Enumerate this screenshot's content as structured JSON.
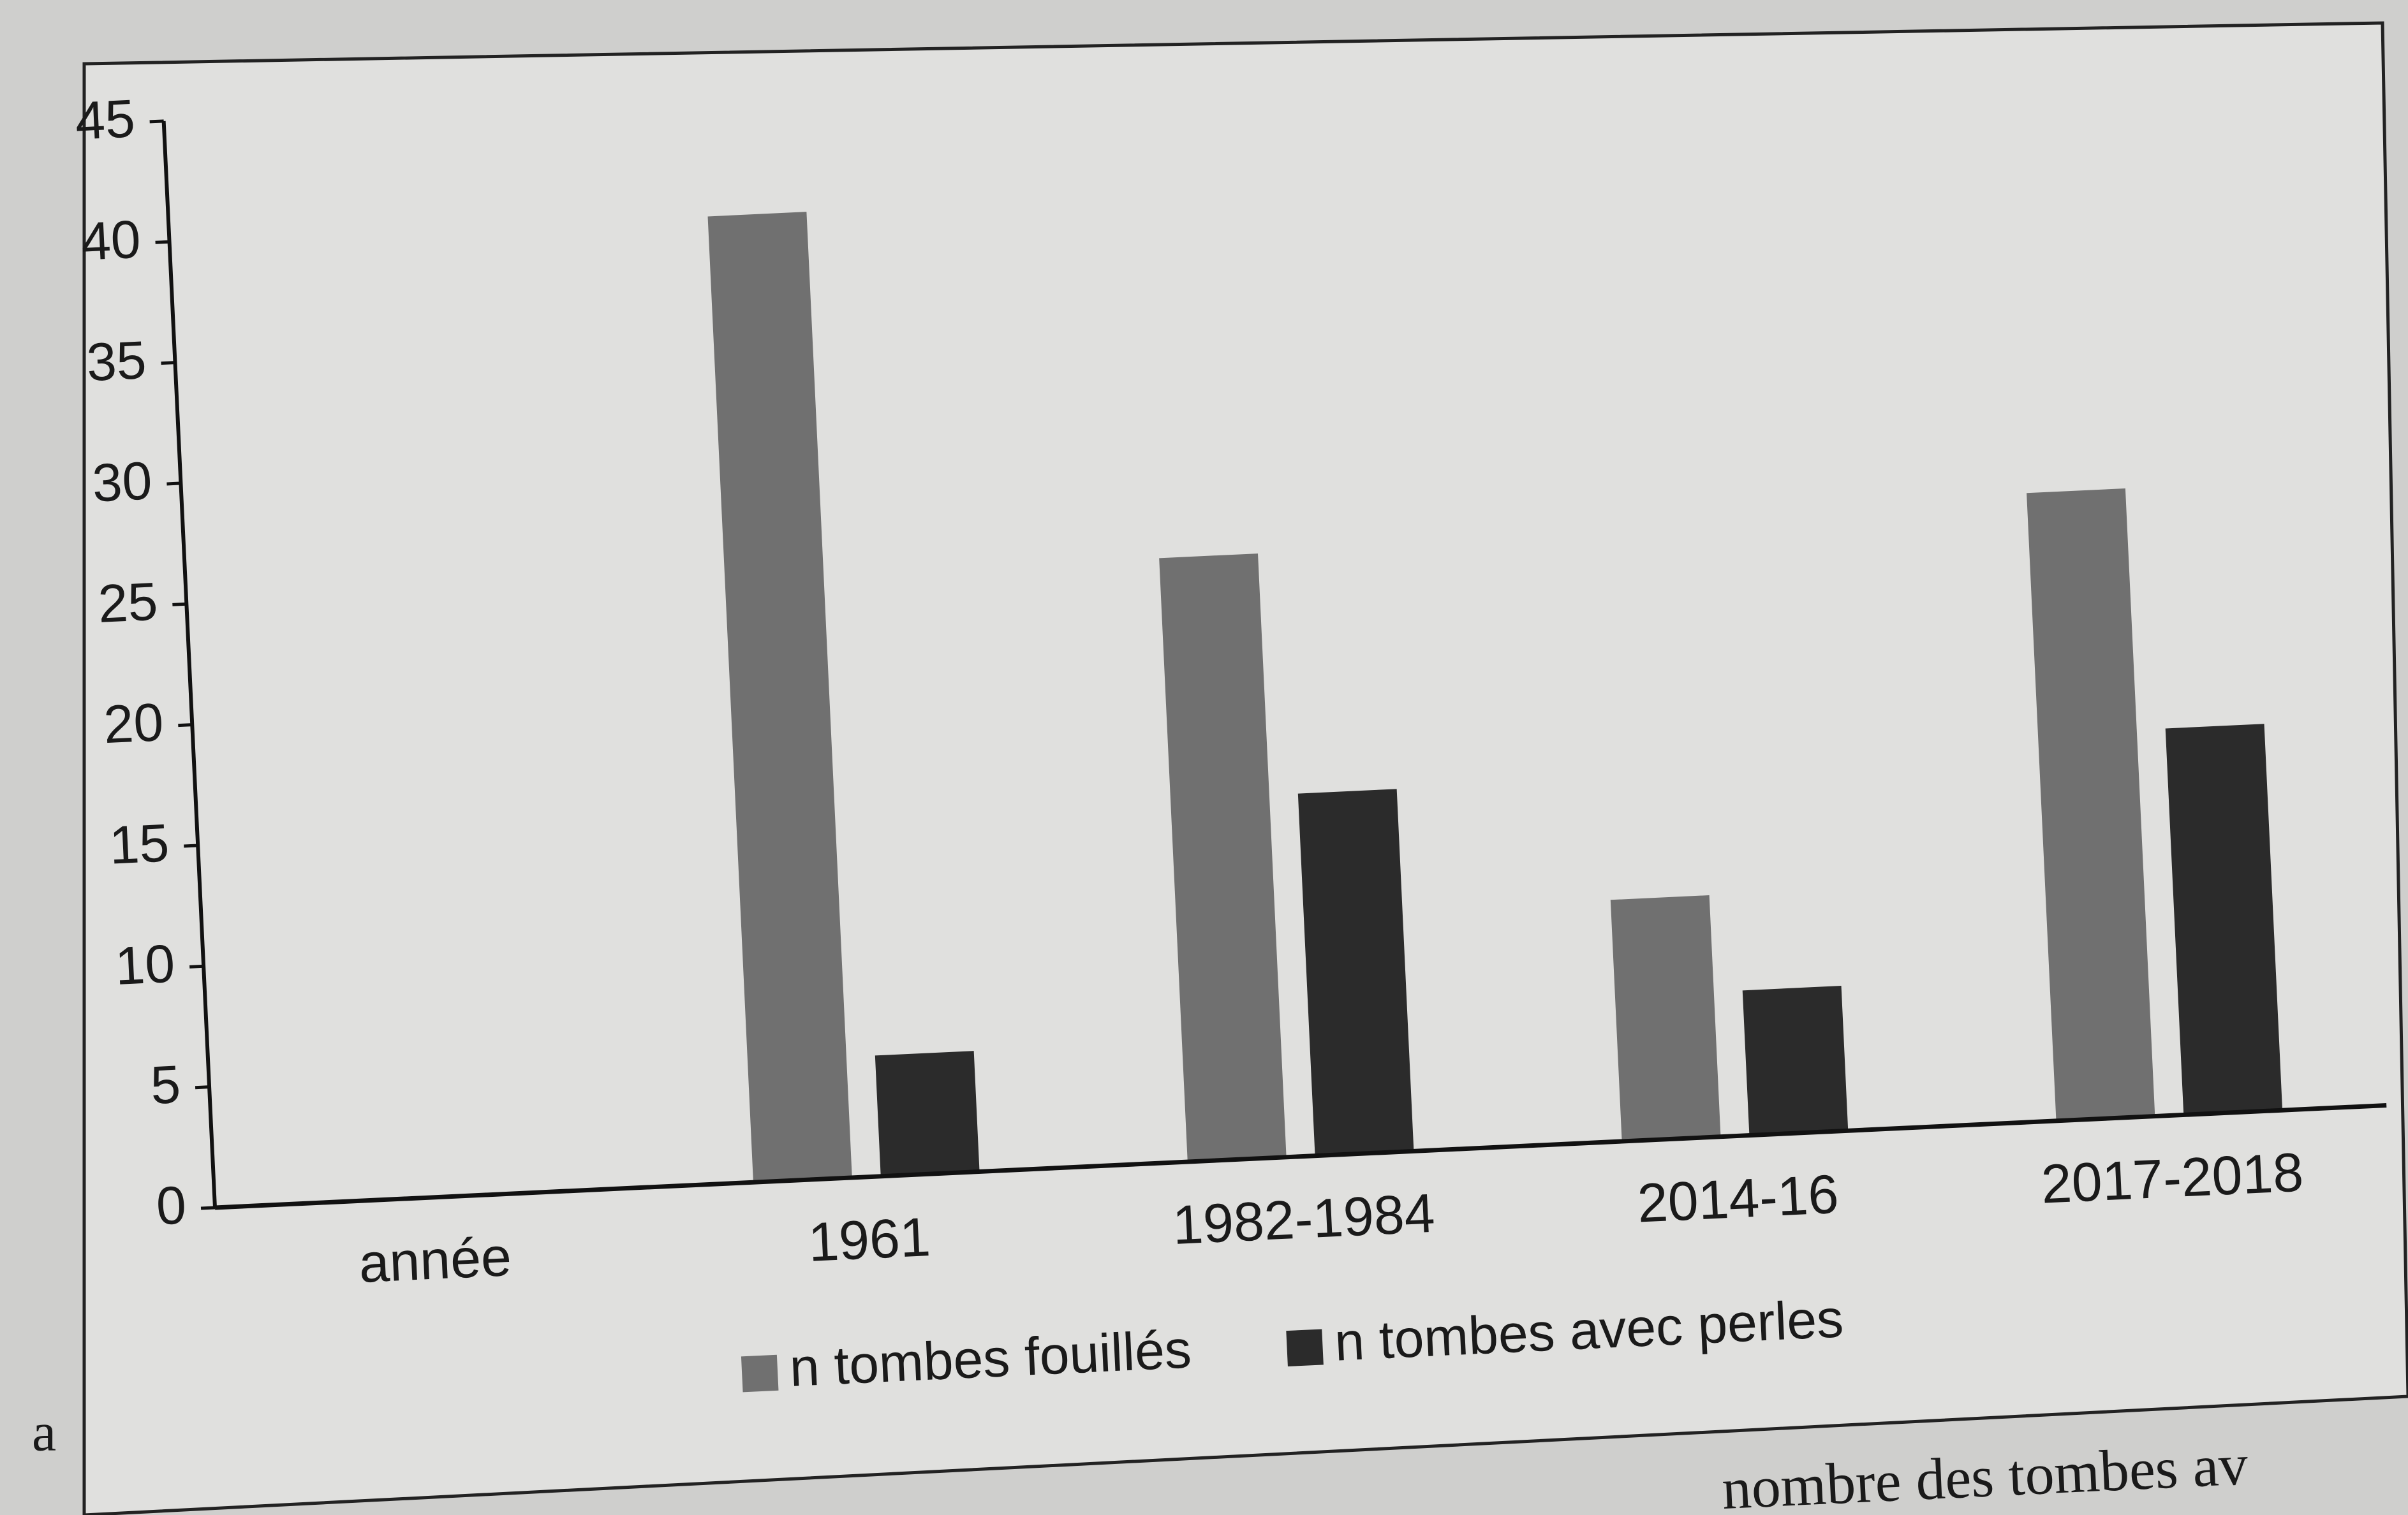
{
  "chart_data": {
    "type": "bar",
    "categories": [
      "année",
      "1961",
      "1982-1984",
      "2014-16",
      "2017-2018"
    ],
    "series": [
      {
        "name": "n tombes fouillés",
        "color": "#707070",
        "values": [
          null,
          40,
          25,
          10,
          26
        ]
      },
      {
        "name": "n tombes avec perles",
        "color": "#2b2b2b",
        "values": [
          null,
          5,
          15,
          6,
          16
        ]
      }
    ],
    "ylim": [
      0,
      45
    ],
    "yticks": [
      0,
      5,
      10,
      15,
      20,
      25,
      30,
      35,
      40,
      45
    ],
    "legend": "bottom"
  },
  "panel_label": "a",
  "caption": "nombre des tombes av"
}
